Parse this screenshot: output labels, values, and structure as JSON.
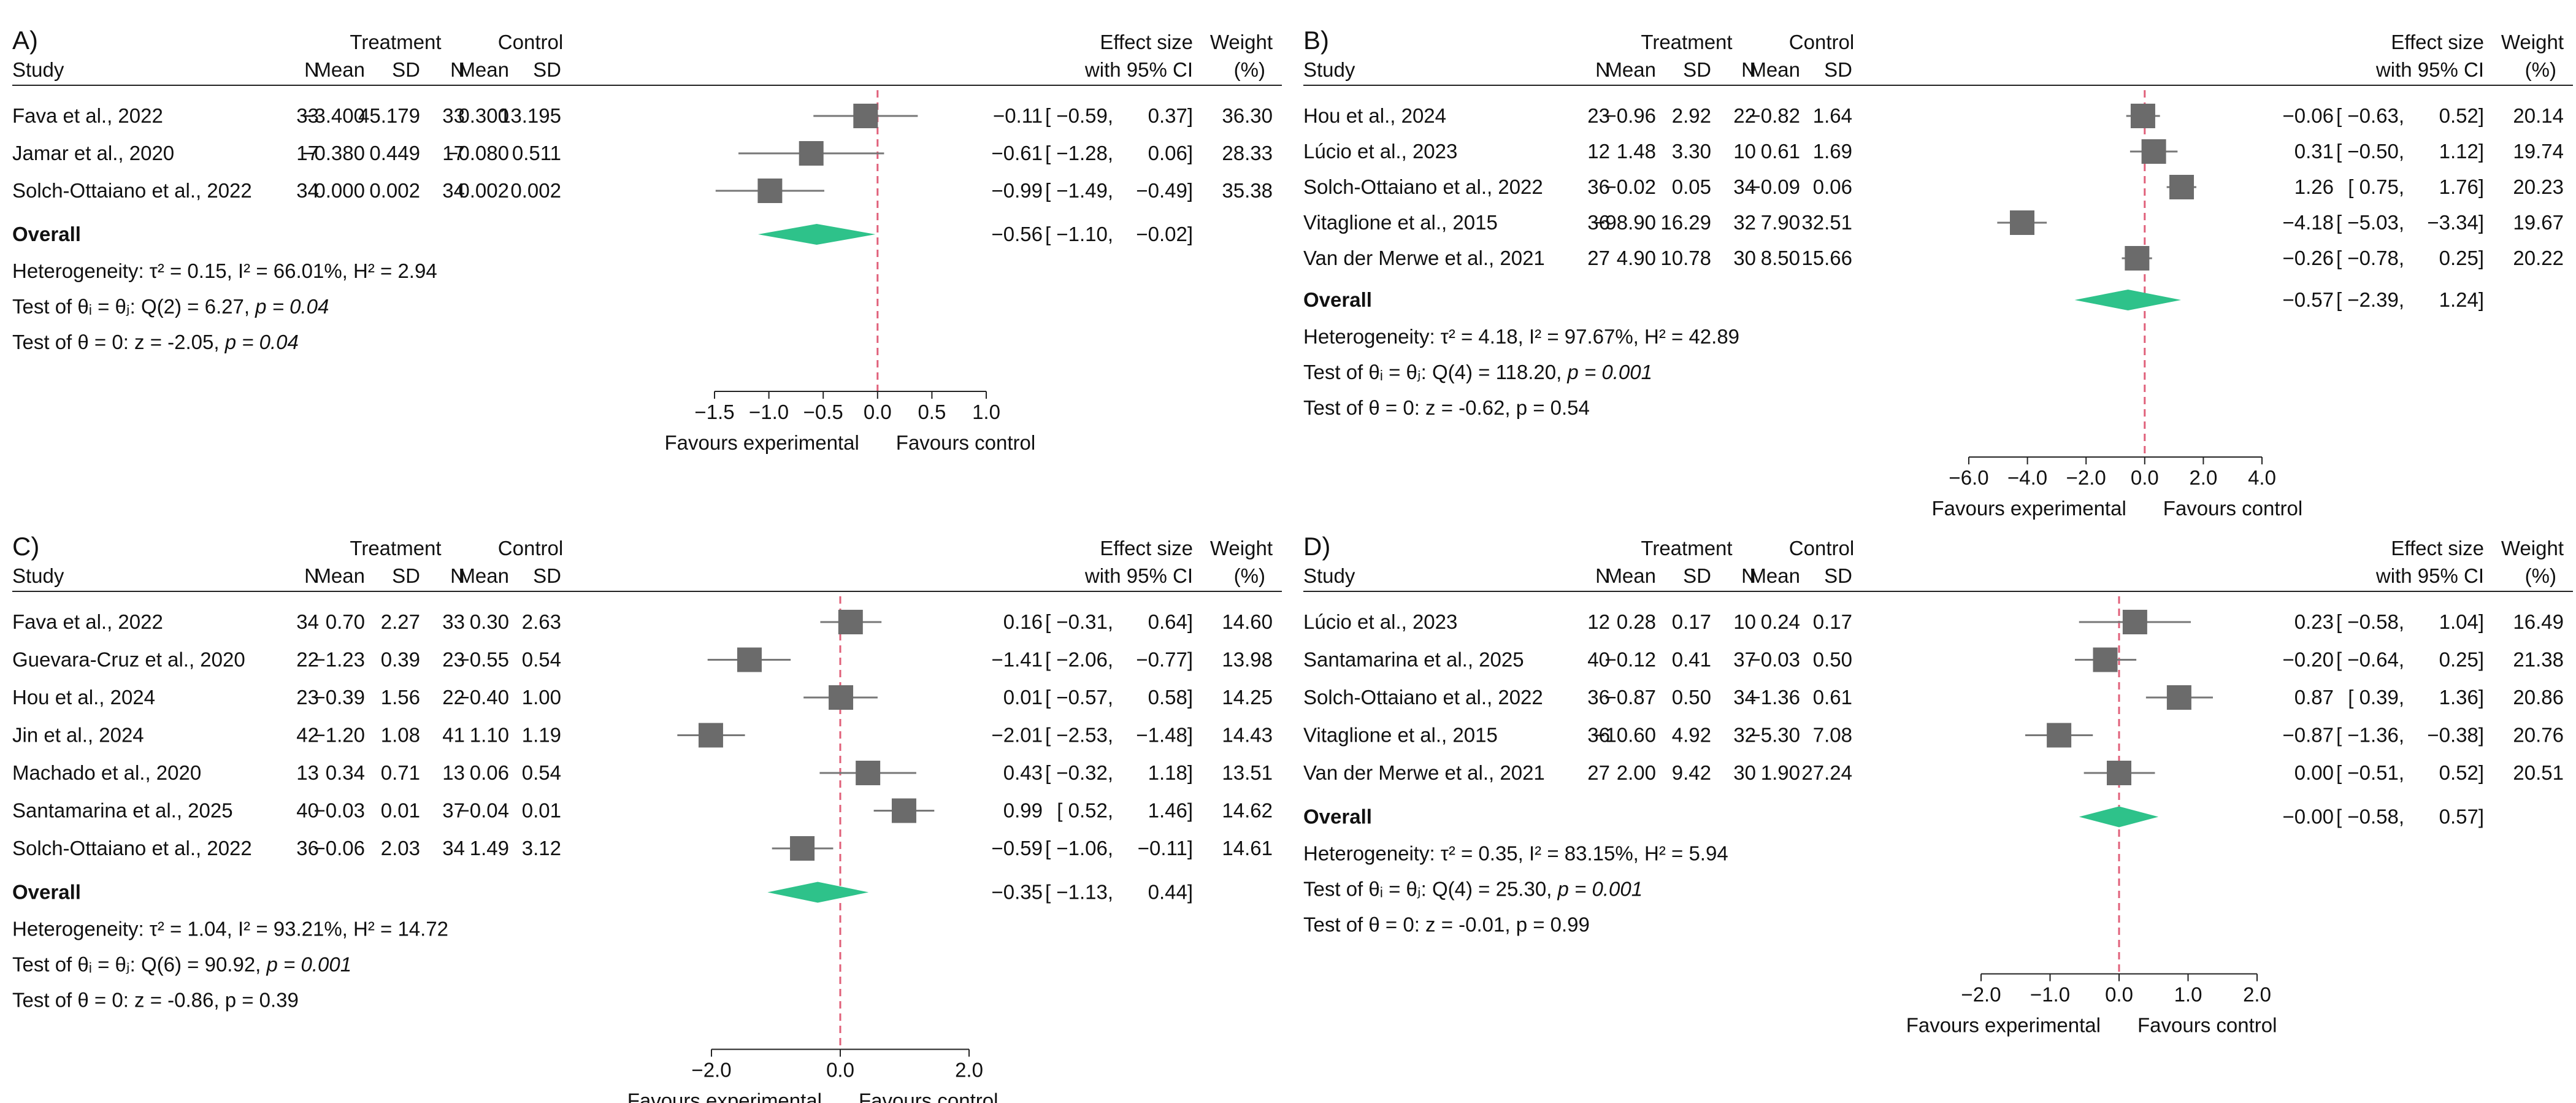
{
  "chart_data": [
    {
      "panel": "A)",
      "type": "forest",
      "col_headers": {
        "study": "Study",
        "treatment": "Treatment",
        "control": "Control",
        "n": "N",
        "mean": "Mean",
        "sd": "SD",
        "effect1": "Effect size",
        "effect2": "with 95% CI",
        "weight1": "Weight",
        "weight2": "(%)"
      },
      "studies": [
        {
          "name": "Fava et al., 2022",
          "t_n": "33",
          "t_mean": "−3.400",
          "t_sd": "45.179",
          "c_n": "33",
          "c_mean": "0.300",
          "c_sd": "13.195",
          "es": -0.11,
          "lo": -0.59,
          "hi": 0.37,
          "es_text": "−0.11",
          "lo_text": "[ −0.59,",
          "hi_text": "0.37]",
          "weight": "36.30"
        },
        {
          "name": "Jamar et al., 2020",
          "t_n": "17",
          "t_mean": "−0.380",
          "t_sd": "0.449",
          "c_n": "17",
          "c_mean": "−0.080",
          "c_sd": "0.511",
          "es": -0.61,
          "lo": -1.28,
          "hi": 0.06,
          "es_text": "−0.61",
          "lo_text": "[ −1.28,",
          "hi_text": "0.06]",
          "weight": "28.33"
        },
        {
          "name": "Solch-Ottaiano et al., 2022",
          "t_n": "34",
          "t_mean": "0.000",
          "t_sd": "0.002",
          "c_n": "34",
          "c_mean": "0.002",
          "c_sd": "0.002",
          "es": -0.99,
          "lo": -1.49,
          "hi": -0.49,
          "es_text": "−0.99",
          "lo_text": "[ −1.49,",
          "hi_text": "−0.49]",
          "weight": "35.38"
        }
      ],
      "overall": {
        "label": "Overall",
        "es": -0.56,
        "lo": -1.1,
        "hi": -0.02,
        "es_text": "−0.56",
        "lo_text": "[ −1.10,",
        "hi_text": "−0.02]"
      },
      "stats": {
        "heterogeneity": "Heterogeneity: τ² = 0.15, I² = 66.01%, H² = 2.94",
        "q_prefix": "Test of θᵢ = θⱼ: Q(2) = 6.27, ",
        "q_p": "p = 0.04",
        "z_prefix": "Test of θ = 0: z = -2.05, ",
        "z_p": "p = 0.04"
      },
      "xlim": [
        -1.5,
        1.0
      ],
      "ticks": [
        -1.5,
        -1.0,
        -0.5,
        0.0,
        0.5,
        1.0
      ],
      "tick_labels": [
        "−1.5",
        "−1.0",
        "−0.5",
        "0.0",
        "0.5",
        "1.0"
      ],
      "favours_left": "Favours experimental",
      "favours_right": "Favours control",
      "colors": {
        "square": "#6b6b6b",
        "diamond": "#2ec28a",
        "null_line": "#e0607a"
      }
    },
    {
      "panel": "B)",
      "type": "forest",
      "col_headers": {
        "study": "Study",
        "treatment": "Treatment",
        "control": "Control",
        "n": "N",
        "mean": "Mean",
        "sd": "SD",
        "effect1": "Effect size",
        "effect2": "with 95% CI",
        "weight1": "Weight",
        "weight2": "(%)"
      },
      "studies": [
        {
          "name": "Hou et al., 2024",
          "t_n": "23",
          "t_mean": "−0.96",
          "t_sd": "2.92",
          "c_n": "22",
          "c_mean": "−0.82",
          "c_sd": "1.64",
          "es": -0.06,
          "lo": -0.63,
          "hi": 0.52,
          "es_text": "−0.06",
          "lo_text": "[ −0.63,",
          "hi_text": "0.52]",
          "weight": "20.14"
        },
        {
          "name": "Lúcio et al., 2023",
          "t_n": "12",
          "t_mean": "1.48",
          "t_sd": "3.30",
          "c_n": "10",
          "c_mean": "0.61",
          "c_sd": "1.69",
          "es": 0.31,
          "lo": -0.5,
          "hi": 1.12,
          "es_text": "0.31",
          "lo_text": "[ −0.50,",
          "hi_text": "1.12]",
          "weight": "19.74"
        },
        {
          "name": "Solch-Ottaiano et al., 2022",
          "t_n": "36",
          "t_mean": "−0.02",
          "t_sd": "0.05",
          "c_n": "34",
          "c_mean": "−0.09",
          "c_sd": "0.06",
          "es": 1.26,
          "lo": 0.75,
          "hi": 1.76,
          "es_text": "1.26",
          "lo_text": "[ 0.75,",
          "hi_text": "1.76]",
          "weight": "20.23"
        },
        {
          "name": "Vitaglione et al., 2015",
          "t_n": "36",
          "t_mean": "−98.90",
          "t_sd": "16.29",
          "c_n": "32",
          "c_mean": "7.90",
          "c_sd": "32.51",
          "es": -4.18,
          "lo": -5.03,
          "hi": -3.34,
          "es_text": "−4.18",
          "lo_text": "[ −5.03,",
          "hi_text": "−3.34]",
          "weight": "19.67"
        },
        {
          "name": "Van der Merwe et al., 2021",
          "t_n": "27",
          "t_mean": "4.90",
          "t_sd": "10.78",
          "c_n": "30",
          "c_mean": "8.50",
          "c_sd": "15.66",
          "es": -0.26,
          "lo": -0.78,
          "hi": 0.25,
          "es_text": "−0.26",
          "lo_text": "[ −0.78,",
          "hi_text": "0.25]",
          "weight": "20.22"
        }
      ],
      "overall": {
        "label": "Overall",
        "es": -0.57,
        "lo": -2.39,
        "hi": 1.24,
        "es_text": "−0.57",
        "lo_text": "[ −2.39,",
        "hi_text": "1.24]"
      },
      "stats": {
        "heterogeneity": "Heterogeneity: τ² = 4.18, I² = 97.67%, H² = 42.89",
        "q_prefix": "Test of θᵢ = θⱼ: Q(4) = 118.20, ",
        "q_p": "p = 0.001",
        "z_prefix": "Test of θ = 0: z = -0.62, p = 0.54",
        "z_p": ""
      },
      "xlim": [
        -6.0,
        4.0
      ],
      "ticks": [
        -6.0,
        -4.0,
        -2.0,
        0.0,
        2.0,
        4.0
      ],
      "tick_labels": [
        "−6.0",
        "−4.0",
        "−2.0",
        "0.0",
        "2.0",
        "4.0"
      ],
      "favours_left": "Favours experimental",
      "favours_right": "Favours control",
      "colors": {
        "square": "#6b6b6b",
        "diamond": "#2ec28a",
        "null_line": "#e0607a"
      }
    },
    {
      "panel": "C)",
      "type": "forest",
      "col_headers": {
        "study": "Study",
        "treatment": "Treatment",
        "control": "Control",
        "n": "N",
        "mean": "Mean",
        "sd": "SD",
        "effect1": "Effect size",
        "effect2": "with 95% CI",
        "weight1": "Weight",
        "weight2": "(%)"
      },
      "studies": [
        {
          "name": "Fava et al., 2022",
          "t_n": "34",
          "t_mean": "0.70",
          "t_sd": "2.27",
          "c_n": "33",
          "c_mean": "0.30",
          "c_sd": "2.63",
          "es": 0.16,
          "lo": -0.31,
          "hi": 0.64,
          "es_text": "0.16",
          "lo_text": "[ −0.31,",
          "hi_text": "0.64]",
          "weight": "14.60"
        },
        {
          "name": "Guevara-Cruz et al., 2020",
          "t_n": "22",
          "t_mean": "−1.23",
          "t_sd": "0.39",
          "c_n": "23",
          "c_mean": "−0.55",
          "c_sd": "0.54",
          "es": -1.41,
          "lo": -2.06,
          "hi": -0.77,
          "es_text": "−1.41",
          "lo_text": "[ −2.06,",
          "hi_text": "−0.77]",
          "weight": "13.98"
        },
        {
          "name": "Hou et al., 2024",
          "t_n": "23",
          "t_mean": "−0.39",
          "t_sd": "1.56",
          "c_n": "22",
          "c_mean": "−0.40",
          "c_sd": "1.00",
          "es": 0.01,
          "lo": -0.57,
          "hi": 0.58,
          "es_text": "0.01",
          "lo_text": "[ −0.57,",
          "hi_text": "0.58]",
          "weight": "14.25"
        },
        {
          "name": "Jin et al., 2024",
          "t_n": "42",
          "t_mean": "−1.20",
          "t_sd": "1.08",
          "c_n": "41",
          "c_mean": "1.10",
          "c_sd": "1.19",
          "es": -2.01,
          "lo": -2.53,
          "hi": -1.48,
          "es_text": "−2.01",
          "lo_text": "[ −2.53,",
          "hi_text": "−1.48]",
          "weight": "14.43"
        },
        {
          "name": "Machado et al., 2020",
          "t_n": "13",
          "t_mean": "0.34",
          "t_sd": "0.71",
          "c_n": "13",
          "c_mean": "0.06",
          "c_sd": "0.54",
          "es": 0.43,
          "lo": -0.32,
          "hi": 1.18,
          "es_text": "0.43",
          "lo_text": "[ −0.32,",
          "hi_text": "1.18]",
          "weight": "13.51"
        },
        {
          "name": "Santamarina et al., 2025",
          "t_n": "40",
          "t_mean": "−0.03",
          "t_sd": "0.01",
          "c_n": "37",
          "c_mean": "−0.04",
          "c_sd": "0.01",
          "es": 0.99,
          "lo": 0.52,
          "hi": 1.46,
          "es_text": "0.99",
          "lo_text": "[ 0.52,",
          "hi_text": "1.46]",
          "weight": "14.62"
        },
        {
          "name": "Solch-Ottaiano et al., 2022",
          "t_n": "36",
          "t_mean": "−0.06",
          "t_sd": "2.03",
          "c_n": "34",
          "c_mean": "1.49",
          "c_sd": "3.12",
          "es": -0.59,
          "lo": -1.06,
          "hi": -0.11,
          "es_text": "−0.59",
          "lo_text": "[ −1.06,",
          "hi_text": "−0.11]",
          "weight": "14.61"
        }
      ],
      "overall": {
        "label": "Overall",
        "es": -0.35,
        "lo": -1.13,
        "hi": 0.44,
        "es_text": "−0.35",
        "lo_text": "[ −1.13,",
        "hi_text": "0.44]"
      },
      "stats": {
        "heterogeneity": "Heterogeneity: τ² = 1.04, I² = 93.21%, H² = 14.72",
        "q_prefix": "Test of θᵢ = θⱼ: Q(6) = 90.92, ",
        "q_p": "p = 0.001",
        "z_prefix": "Test of θ = 0: z = -0.86, p = 0.39",
        "z_p": ""
      },
      "xlim": [
        -2.0,
        2.0
      ],
      "ticks": [
        -2.0,
        0.0,
        2.0
      ],
      "tick_labels": [
        "−2.0",
        "0.0",
        "2.0"
      ],
      "favours_left": "Favours experimental",
      "favours_right": "Favours control",
      "colors": {
        "square": "#6b6b6b",
        "diamond": "#2ec28a",
        "null_line": "#e0607a"
      }
    },
    {
      "panel": "D)",
      "type": "forest",
      "col_headers": {
        "study": "Study",
        "treatment": "Treatment",
        "control": "Control",
        "n": "N",
        "mean": "Mean",
        "sd": "SD",
        "effect1": "Effect size",
        "effect2": "with 95% CI",
        "weight1": "Weight",
        "weight2": "(%)"
      },
      "studies": [
        {
          "name": "Lúcio et al., 2023",
          "t_n": "12",
          "t_mean": "0.28",
          "t_sd": "0.17",
          "c_n": "10",
          "c_mean": "0.24",
          "c_sd": "0.17",
          "es": 0.23,
          "lo": -0.58,
          "hi": 1.04,
          "es_text": "0.23",
          "lo_text": "[ −0.58,",
          "hi_text": "1.04]",
          "weight": "16.49"
        },
        {
          "name": "Santamarina et al., 2025",
          "t_n": "40",
          "t_mean": "−0.12",
          "t_sd": "0.41",
          "c_n": "37",
          "c_mean": "−0.03",
          "c_sd": "0.50",
          "es": -0.2,
          "lo": -0.64,
          "hi": 0.25,
          "es_text": "−0.20",
          "lo_text": "[ −0.64,",
          "hi_text": "0.25]",
          "weight": "21.38"
        },
        {
          "name": "Solch-Ottaiano et al., 2022",
          "t_n": "36",
          "t_mean": "−0.87",
          "t_sd": "0.50",
          "c_n": "34",
          "c_mean": "−1.36",
          "c_sd": "0.61",
          "es": 0.87,
          "lo": 0.39,
          "hi": 1.36,
          "es_text": "0.87",
          "lo_text": "[ 0.39,",
          "hi_text": "1.36]",
          "weight": "20.86"
        },
        {
          "name": "Vitaglione et al., 2015",
          "t_n": "36",
          "t_mean": "−10.60",
          "t_sd": "4.92",
          "c_n": "32",
          "c_mean": "−5.30",
          "c_sd": "7.08",
          "es": -0.87,
          "lo": -1.36,
          "hi": -0.38,
          "es_text": "−0.87",
          "lo_text": "[ −1.36,",
          "hi_text": "−0.38]",
          "weight": "20.76"
        },
        {
          "name": "Van der Merwe et al., 2021",
          "t_n": "27",
          "t_mean": "2.00",
          "t_sd": "9.42",
          "c_n": "30",
          "c_mean": "1.90",
          "c_sd": "27.24",
          "es": 0.0,
          "lo": -0.51,
          "hi": 0.52,
          "es_text": "0.00",
          "lo_text": "[ −0.51,",
          "hi_text": "0.52]",
          "weight": "20.51"
        }
      ],
      "overall": {
        "label": "Overall",
        "es": 0.0,
        "lo": -0.58,
        "hi": 0.57,
        "es_text": "−0.00",
        "lo_text": "[ −0.58,",
        "hi_text": "0.57]"
      },
      "stats": {
        "heterogeneity": "Heterogeneity: τ² = 0.35, I² = 83.15%, H² = 5.94",
        "q_prefix": "Test of θᵢ = θⱼ: Q(4) = 25.30, ",
        "q_p": "p = 0.001",
        "z_prefix": "Test of θ = 0: z = -0.01, p = 0.99",
        "z_p": ""
      },
      "xlim": [
        -2.0,
        2.0
      ],
      "ticks": [
        -2.0,
        -1.0,
        0.0,
        1.0,
        2.0
      ],
      "tick_labels": [
        "−2.0",
        "−1.0",
        "0.0",
        "1.0",
        "2.0"
      ],
      "favours_left": "Favours experimental",
      "favours_right": "Favours control",
      "colors": {
        "square": "#6b6b6b",
        "diamond": "#2ec28a",
        "null_line": "#e0607a"
      }
    }
  ]
}
